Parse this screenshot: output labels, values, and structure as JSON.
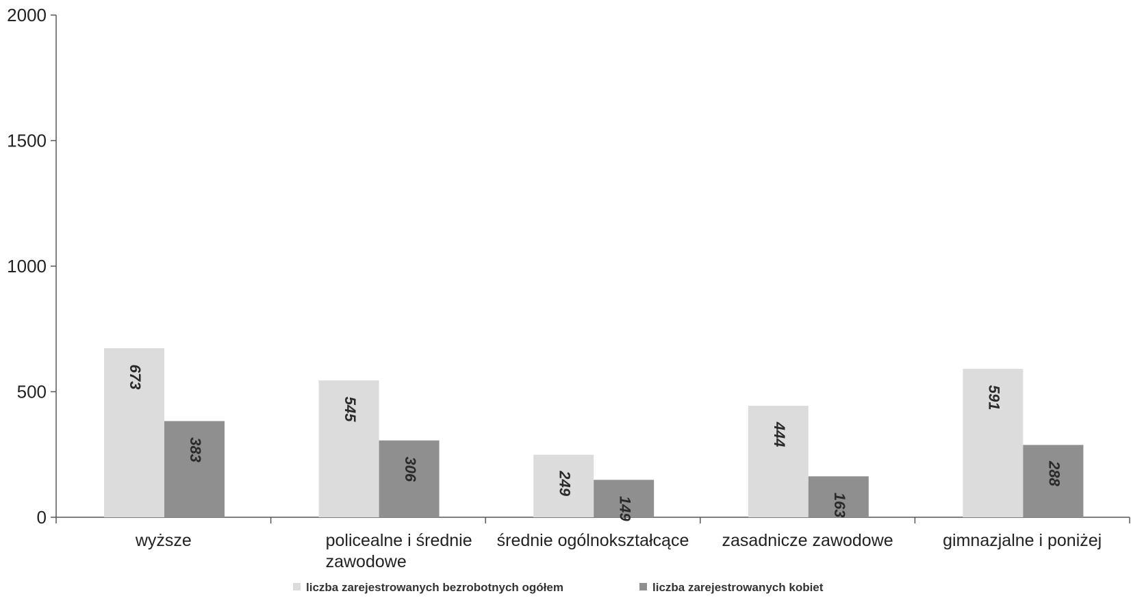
{
  "chart_data": {
    "type": "bar",
    "categories": [
      [
        "wyższe"
      ],
      [
        "policealne i średnie",
        "zawodowe"
      ],
      [
        "średnie ogólnokształcące"
      ],
      [
        "zasadnicze zawodowe"
      ],
      [
        "gimnazjalne i poniżej"
      ]
    ],
    "series": [
      {
        "name": "liczba zarejestrowanych bezrobotnych ogółem",
        "color": "#dcdcdc",
        "values": [
          673,
          545,
          249,
          444,
          591
        ]
      },
      {
        "name": "liczba zarejestrowanych kobiet",
        "color": "#8f8f8f",
        "values": [
          383,
          306,
          149,
          163,
          288
        ]
      }
    ],
    "yticks": [
      "0",
      "500",
      "1000",
      "1500",
      "2000"
    ],
    "ylim": [
      0,
      2000
    ],
    "legend_position": "bottom",
    "grid": false
  }
}
